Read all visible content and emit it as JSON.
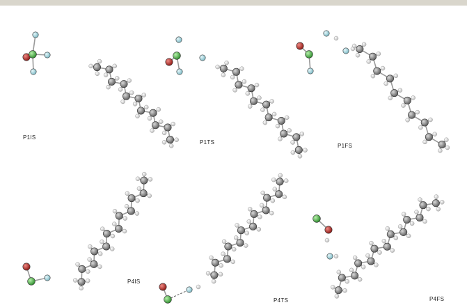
{
  "panels": [
    {
      "id": "p1is",
      "label": "P1IS"
    },
    {
      "id": "p1ts",
      "label": "P1TS"
    },
    {
      "id": "p1fs",
      "label": "P1FS"
    },
    {
      "id": "p4is",
      "label": "P4IS"
    },
    {
      "id": "p4ts",
      "label": "P4TS"
    },
    {
      "id": "p4fs",
      "label": "P4FS"
    }
  ],
  "atom_colors": {
    "carbon": "#8a8a8a",
    "hydrogen": "#e9e9e9",
    "fluorine": "#a8d8e0",
    "chlorine": "#4fb848",
    "oxygen": "#c0302c"
  }
}
